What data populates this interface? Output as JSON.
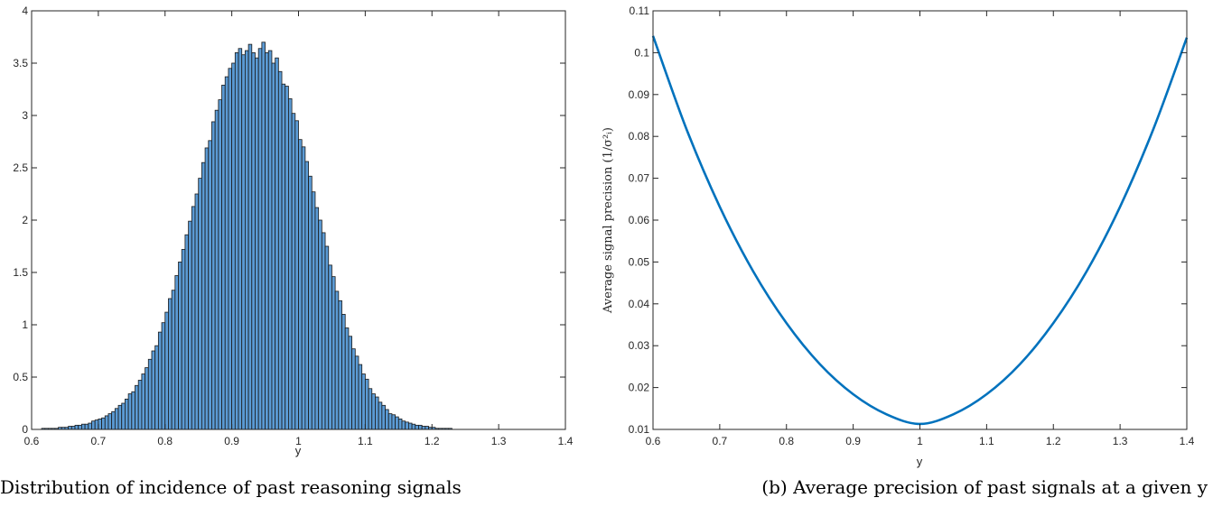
{
  "captions": {
    "left": "Distribution of incidence of past reasoning signals",
    "right": "(b) Average precision of past signals at a given y"
  },
  "chart_data": [
    {
      "type": "bar",
      "subtype": "histogram",
      "xlabel": "y",
      "ylabel": "",
      "xlim": [
        0.6,
        1.4
      ],
      "ylim": [
        0,
        4
      ],
      "xticks": [
        "0.6",
        "0.7",
        "0.8",
        "0.9",
        "1",
        "1.1",
        "1.2",
        "1.3",
        "1.4"
      ],
      "yticks": [
        "0",
        "0.5",
        "1",
        "1.5",
        "2",
        "2.5",
        "3",
        "3.5",
        "4"
      ],
      "bar_color": "#5b9bd5",
      "edge_color": "#1a1a1a",
      "bin_start": 0.6,
      "bin_width": 0.005,
      "values": [
        0.0,
        0.0,
        0.0,
        0.01,
        0.01,
        0.01,
        0.01,
        0.01,
        0.02,
        0.02,
        0.02,
        0.03,
        0.03,
        0.04,
        0.04,
        0.05,
        0.05,
        0.06,
        0.08,
        0.09,
        0.1,
        0.11,
        0.13,
        0.15,
        0.17,
        0.2,
        0.23,
        0.25,
        0.29,
        0.34,
        0.36,
        0.42,
        0.47,
        0.53,
        0.59,
        0.67,
        0.75,
        0.8,
        0.93,
        1.02,
        1.12,
        1.25,
        1.33,
        1.47,
        1.6,
        1.72,
        1.86,
        1.99,
        2.13,
        2.25,
        2.4,
        2.55,
        2.69,
        2.76,
        2.94,
        3.05,
        3.15,
        3.29,
        3.37,
        3.45,
        3.5,
        3.6,
        3.64,
        3.58,
        3.62,
        3.68,
        3.6,
        3.55,
        3.64,
        3.7,
        3.6,
        3.62,
        3.5,
        3.55,
        3.42,
        3.3,
        3.28,
        3.16,
        3.02,
        2.95,
        2.77,
        2.7,
        2.56,
        2.42,
        2.27,
        2.12,
        2.0,
        1.88,
        1.75,
        1.57,
        1.46,
        1.32,
        1.23,
        1.1,
        0.97,
        0.89,
        0.77,
        0.7,
        0.62,
        0.53,
        0.48,
        0.39,
        0.34,
        0.31,
        0.26,
        0.23,
        0.19,
        0.15,
        0.14,
        0.12,
        0.1,
        0.08,
        0.07,
        0.06,
        0.05,
        0.04,
        0.04,
        0.03,
        0.03,
        0.02,
        0.02,
        0.01,
        0.01,
        0.01,
        0.01,
        0.01,
        0.0,
        0.0,
        0.0,
        0.0,
        0.0,
        0.0,
        0.0,
        0.0,
        0.0,
        0.0,
        0.0,
        0.0,
        0.0,
        0.0,
        0.0,
        0.0,
        0.0,
        0.0,
        0.0,
        0.0,
        0.0,
        0.0,
        0.0,
        0.0,
        0.0,
        0.0,
        0.0,
        0.0,
        0.0,
        0.0,
        0.0,
        0.0,
        0.0,
        0.0
      ],
      "grid": false
    },
    {
      "type": "line",
      "xlabel": "y",
      "ylabel": "Average signal precision (1/σ²ᵢ)",
      "xlim": [
        0.6,
        1.4
      ],
      "ylim": [
        0.01,
        0.11
      ],
      "xticks": [
        "0.6",
        "0.7",
        "0.8",
        "0.9",
        "1",
        "1.1",
        "1.2",
        "1.3",
        "1.4"
      ],
      "yticks": [
        "0.01",
        "0.02",
        "0.03",
        "0.04",
        "0.05",
        "0.06",
        "0.07",
        "0.08",
        "0.09",
        "0.1",
        "0.11"
      ],
      "line_color": "#0072bd",
      "series": [
        {
          "x": [
            0.6,
            0.65,
            0.7,
            0.75,
            0.8,
            0.85,
            0.9,
            0.95,
            1.0,
            1.05,
            1.1,
            1.15,
            1.2,
            1.25,
            1.3,
            1.35,
            1.4
          ],
          "values": [
            0.104,
            0.0818,
            0.0632,
            0.0478,
            0.0354,
            0.0256,
            0.0184,
            0.0136,
            0.0113,
            0.0136,
            0.0184,
            0.0256,
            0.0354,
            0.0478,
            0.0632,
            0.0818,
            0.1036
          ]
        }
      ],
      "grid": false
    }
  ]
}
